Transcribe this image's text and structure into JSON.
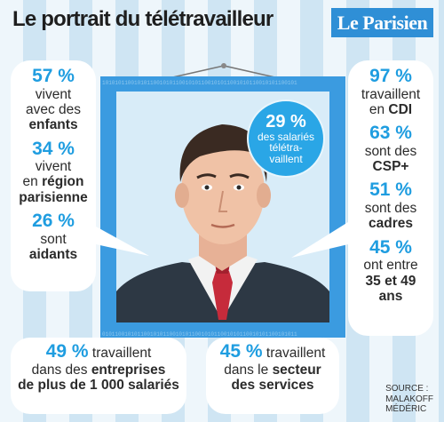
{
  "title": "Le portrait du télétravailleur",
  "logo": "Le Parisien",
  "source": [
    "SOURCE :",
    "MALAKOFF",
    "MÉDÉRIC"
  ],
  "colors": {
    "accent": "#1f9de0",
    "frame": "#2f8fd6",
    "tie": "#c62b3b"
  },
  "chart_data": {
    "type": "table",
    "headline": {
      "pct": "29 %",
      "lines": [
        "des salariés",
        "télétra-",
        "vaillent"
      ]
    },
    "left": [
      {
        "pct": "57 %",
        "lines": [
          "vivent",
          "avec des"
        ],
        "bold": "enfants"
      },
      {
        "pct": "34 %",
        "lines": [
          "vivent",
          "en "
        ],
        "bold": "région",
        "bold2": "parisienne"
      },
      {
        "pct": "26 %",
        "lines": [
          "sont"
        ],
        "bold": "aidants"
      }
    ],
    "right": [
      {
        "pct": "97 %",
        "lines": [
          "travaillent"
        ],
        "mixed": [
          "en ",
          "CDI"
        ]
      },
      {
        "pct": "63 %",
        "lines": [
          "sont des"
        ],
        "bold": "CSP+"
      },
      {
        "pct": "51 %",
        "lines": [
          "sont des"
        ],
        "bold": "cadres"
      },
      {
        "pct": "45 %",
        "lines": [
          "ont entre"
        ],
        "bold": "35 et 49",
        "bold2": "ans"
      }
    ],
    "bottom": [
      {
        "pct": "49 %",
        "text1": " travaillent",
        "text2": "dans des ",
        "bold": "entreprises",
        "bold2": "de plus de 1 000 salariés"
      },
      {
        "pct": "45 %",
        "text1": " travaillent",
        "text2": "dans le ",
        "bold": "secteur",
        "bold2": "des services"
      }
    ]
  }
}
